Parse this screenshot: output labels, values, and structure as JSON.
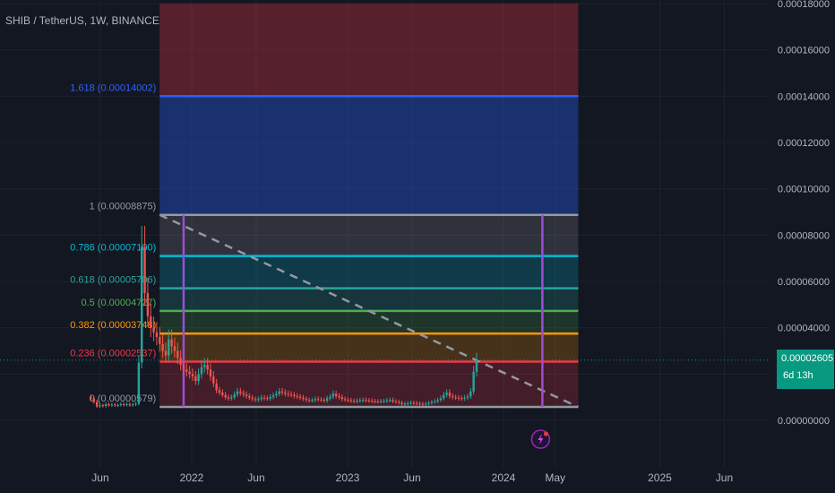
{
  "header": {
    "symbol_title": "SHIB / TetherUS, 1W, BINANCE"
  },
  "price_axis": {
    "labels": [
      "0.00018000",
      "0.00016000",
      "0.00014000",
      "0.00012000",
      "0.00010000",
      "0.00008000",
      "0.00006000",
      "0.00004000",
      "0.00002000",
      "0.00000000"
    ]
  },
  "time_axis": {
    "labels": [
      "Jun",
      "2022",
      "Jun",
      "2023",
      "Jun",
      "2024",
      "May",
      "2025",
      "Jun"
    ]
  },
  "current_price": {
    "value": "0.00002605",
    "countdown": "6d 13h"
  },
  "colors": {
    "background": "#131722",
    "up_candle": "#26a69a",
    "down_candle": "#ef5350",
    "vertical_marker": "#9c4dd4",
    "price_tag": "#089981"
  },
  "icons": {
    "event_marker": "lightning-event-icon"
  },
  "chart_data": {
    "type": "candlestick-with-fibonacci",
    "title": "SHIB / TetherUS, 1W, BINANCE",
    "ylim": [
      0,
      0.00018
    ],
    "current_price": 2.605e-05,
    "fib_levels": [
      {
        "ratio": 1.618,
        "label": "1.618 (0.00014002)",
        "value": 0.00014002,
        "color": "#2962ff"
      },
      {
        "ratio": 1,
        "label": "1 (0.00008875)",
        "value": 8.875e-05,
        "color": "#9598a1"
      },
      {
        "ratio": 0.786,
        "label": "0.786 (0.00007100)",
        "value": 7.1e-05,
        "color": "#00bcd4"
      },
      {
        "ratio": 0.618,
        "label": "0.618 (0.00005706)",
        "value": 5.706e-05,
        "color": "#26a69a"
      },
      {
        "ratio": 0.5,
        "label": "0.5 (0.00004727)",
        "value": 4.727e-05,
        "color": "#4caf50"
      },
      {
        "ratio": 0.382,
        "label": "0.382 (0.00003748)",
        "value": 3.748e-05,
        "color": "#ff9800"
      },
      {
        "ratio": 0.236,
        "label": "0.236 (0.00002537)",
        "value": 2.537e-05,
        "color": "#f23645"
      },
      {
        "ratio": 0,
        "label": "0 (0.00000579)",
        "value": 5.79e-06,
        "color": "#9598a1"
      }
    ],
    "band_fills": [
      {
        "from": 0.00014002,
        "to": 0.00018,
        "color": "#f23645",
        "opacity": 0.3
      },
      {
        "from": 8.875e-05,
        "to": 0.00014002,
        "color": "#2962ff",
        "opacity": 0.35
      },
      {
        "from": 7.1e-05,
        "to": 8.875e-05,
        "color": "#9598a1",
        "opacity": 0.22
      },
      {
        "from": 5.706e-05,
        "to": 7.1e-05,
        "color": "#00bcd4",
        "opacity": 0.22
      },
      {
        "from": 4.727e-05,
        "to": 5.706e-05,
        "color": "#26a69a",
        "opacity": 0.22
      },
      {
        "from": 3.748e-05,
        "to": 4.727e-05,
        "color": "#4caf50",
        "opacity": 0.2
      },
      {
        "from": 2.537e-05,
        "to": 3.748e-05,
        "color": "#ff9800",
        "opacity": 0.22
      },
      {
        "from": 5.79e-06,
        "to": 2.537e-05,
        "color": "#f23645",
        "opacity": 0.22
      }
    ],
    "weekly_closes": [
      9.5e-06,
      8e-06,
      6e-06,
      6.5e-06,
      6.2e-06,
      7e-06,
      6.5e-06,
      6.8e-06,
      6.4e-06,
      6.6e-06,
      7e-06,
      6.7e-06,
      7e-06,
      6.5e-06,
      6.9e-06,
      7.2e-06,
      2.5e-05,
      7.5e-05,
      5.5e-05,
      4.5e-05,
      4e-05,
      3.8e-05,
      3.6e-05,
      3.3e-05,
      3e-05,
      2.8e-05,
      3.5e-05,
      3.2e-05,
      3e-05,
      2.7e-05,
      2.4e-05,
      2.2e-05,
      2.1e-05,
      2e-05,
      1.9e-05,
      1.7e-05,
      2e-05,
      2.3e-05,
      2.4e-05,
      2.2e-05,
      1.9e-05,
      1.6e-05,
      1.3e-05,
      1.2e-05,
      1.1e-05,
      1e-05,
      9.5e-06,
      1e-05,
      1.12e-05,
      1.25e-05,
      1.18e-05,
      1.12e-05,
      1.05e-05,
      9.8e-06,
      9.2e-06,
      8.8e-06,
      9.2e-06,
      9.8e-06,
      9.6e-06,
      9.4e-06,
      1.01e-05,
      1.08e-05,
      1.15e-05,
      1.25e-05,
      1.2e-05,
      1.15e-05,
      1.12e-05,
      1.1e-05,
      1.05e-05,
      1.02e-05,
      9.8e-06,
      9.3e-06,
      8.8e-06,
      8.6e-06,
      8.7e-06,
      9.2e-06,
      9e-06,
      8.8e-06,
      8.5e-06,
      9.5e-06,
      1.02e-05,
      1.15e-05,
      1.05e-05,
      1e-05,
      9.2e-06,
      8.9e-06,
      8.7e-06,
      8.4e-06,
      8.2e-06,
      8.5e-06,
      8.7e-06,
      8.8e-06,
      8.6e-06,
      8.5e-06,
      8.3e-06,
      8.2e-06,
      8.1e-06,
      8.3e-06,
      8.4e-06,
      8.6e-06,
      8.8e-06,
      8.2e-06,
      8e-06,
      7.6e-06,
      7e-06,
      7.2e-06,
      7.4e-06,
      7.6e-06,
      7.5e-06,
      7.3e-06,
      7.1e-06,
      7e-06,
      7.2e-06,
      7.5e-06,
      7.9e-06,
      8.2e-06,
      8.8e-06,
      9.5e-06,
      1.1e-05,
      1.2e-05,
      1.05e-05,
      1e-05,
      9.8e-06,
      9.6e-06,
      9.4e-06,
      9.8e-06,
      1.03e-05,
      1.25e-05,
      2.1e-05,
      2.605e-05
    ],
    "date_range": [
      "2021-05-10",
      "2024-03-11"
    ],
    "trend_line": {
      "from": {
        "date": "2021-10-18",
        "value": 8.875e-05
      },
      "to": {
        "date": "2024-06-24",
        "value": 5.79e-06
      }
    },
    "vertical_markers": [
      "2021-12-13",
      "2024-04-01"
    ],
    "fib_range": [
      "2021-10-18",
      "2024-06-24"
    ],
    "event_marker_date": "2024-04-01",
    "xaxis_tick_dates": [
      "2021-06-01",
      "2022-01-01",
      "2022-06-01",
      "2023-01-01",
      "2023-06-01",
      "2024-01-01",
      "2024-05-01",
      "2025-01-01",
      "2025-06-01"
    ]
  }
}
